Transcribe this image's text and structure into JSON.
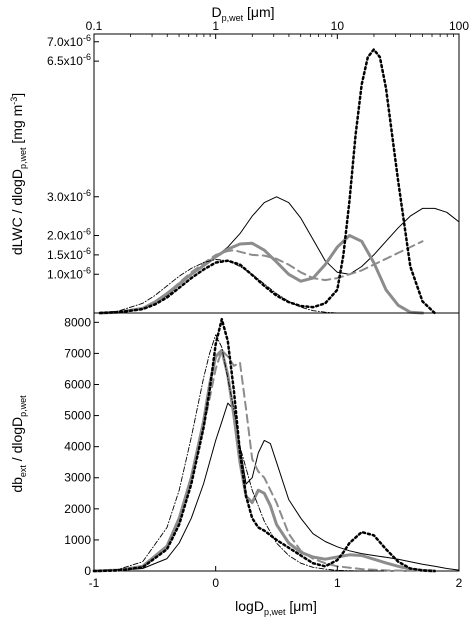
{
  "chart_data": [
    {
      "type": "line",
      "panel": "top",
      "title": "",
      "top_axis": {
        "label_main": "D",
        "label_sub": "p,wet",
        "label_unit": " [μm]",
        "scale": "log",
        "ticks": [
          {
            "value": 0.1,
            "label": "0.1"
          },
          {
            "value": 1,
            "label": "1"
          },
          {
            "value": 10,
            "label": "10"
          },
          {
            "value": 100,
            "label": "100"
          }
        ]
      },
      "ylabel_parts": [
        "dLWC / dlogD",
        "p,wet",
        " [mg m",
        "-3",
        "]"
      ],
      "ylim": [
        0,
        7.2e-06
      ],
      "xlim": [
        -1,
        2
      ],
      "y_ticks": [
        {
          "value": 1e-06,
          "mant": "1.0x10",
          "exp": "-6"
        },
        {
          "value": 1.5e-06,
          "mant": "1.5x10",
          "exp": "-6"
        },
        {
          "value": 2e-06,
          "mant": "2.0x10",
          "exp": "-6"
        },
        {
          "value": 3e-06,
          "mant": "3.0x10",
          "exp": "-6"
        },
        {
          "value": 6.5e-06,
          "mant": "6.5x10",
          "exp": "-6"
        },
        {
          "value": 7e-06,
          "mant": "7.0x10",
          "exp": "-6"
        }
      ],
      "series": [
        {
          "style": "thin-solid",
          "x": [
            -0.95,
            -0.8,
            -0.6,
            -0.5,
            -0.4,
            -0.3,
            -0.2,
            -0.1,
            0,
            0.1,
            0.2,
            0.3,
            0.4,
            0.5,
            0.6,
            0.7,
            0.8,
            0.9,
            1.0,
            1.1,
            1.2,
            1.3,
            1.4,
            1.5,
            1.6,
            1.7,
            1.8,
            1.9,
            2.0
          ],
          "y": [
            0.0,
            2e-08,
            1.2e-07,
            2.5e-07,
            4.5e-07,
            7.2e-07,
            9.8e-07,
            1.2e-06,
            1.45e-06,
            1.7e-06,
            2.05e-06,
            2.5e-06,
            2.85e-06,
            3e-06,
            2.85e-06,
            2.45e-06,
            1.9e-06,
            1.35e-06,
            1.05e-06,
            1e-06,
            1.2e-06,
            1.5e-06,
            1.85e-06,
            2.2e-06,
            2.5e-06,
            2.7e-06,
            2.7e-06,
            2.6e-06,
            2.35e-06
          ]
        },
        {
          "style": "thick-gray",
          "x": [
            -0.95,
            -0.8,
            -0.6,
            -0.5,
            -0.4,
            -0.3,
            -0.2,
            -0.1,
            0,
            0.1,
            0.2,
            0.3,
            0.4,
            0.5,
            0.6,
            0.7,
            0.8,
            0.9,
            1.0,
            1.1,
            1.2,
            1.3,
            1.4,
            1.5,
            1.6,
            1.7
          ],
          "y": [
            0.0,
            2e-08,
            1.2e-07,
            2.8e-07,
            5e-07,
            7.5e-07,
            1e-06,
            1.22e-06,
            1.45e-06,
            1.65e-06,
            1.78e-06,
            1.8e-06,
            1.62e-06,
            1.32e-06,
            1e-06,
            8.2e-07,
            9e-07,
            1.25e-06,
            1.7e-06,
            2e-06,
            1.85e-06,
            1.3e-06,
            6e-07,
            2e-07,
            2e-08,
            0.0
          ]
        },
        {
          "style": "dashed-gray",
          "x": [
            -0.95,
            -0.8,
            -0.6,
            -0.5,
            -0.4,
            -0.3,
            -0.2,
            -0.1,
            0,
            0.1,
            0.15,
            0.2,
            0.3,
            0.4,
            0.5,
            0.6,
            0.7,
            0.8,
            0.9,
            1.0,
            1.1,
            1.2,
            1.3,
            1.4,
            1.5,
            1.6,
            1.7
          ],
          "y": [
            0.0,
            2e-08,
            1.2e-07,
            2.8e-07,
            5e-07,
            7.8e-07,
            1.05e-06,
            1.28e-06,
            1.5e-06,
            1.6e-06,
            1.62e-06,
            1.58e-06,
            1.5e-06,
            1.48e-06,
            1.4e-06,
            1.25e-06,
            1.05e-06,
            9e-07,
            8.5e-07,
            9e-07,
            1e-06,
            1.1e-06,
            1.25e-06,
            1.4e-06,
            1.55e-06,
            1.7e-06,
            1.85e-06
          ]
        },
        {
          "style": "dotted",
          "x": [
            -0.95,
            -0.8,
            -0.6,
            -0.5,
            -0.4,
            -0.3,
            -0.2,
            -0.1,
            0,
            0.1,
            0.2,
            0.3,
            0.4,
            0.5,
            0.6,
            0.7,
            0.8,
            0.9,
            1.0,
            1.05,
            1.1,
            1.15,
            1.2,
            1.25,
            1.3,
            1.35,
            1.4,
            1.5,
            1.6,
            1.7,
            1.8
          ],
          "y": [
            0.0,
            2e-08,
            1e-07,
            2.2e-07,
            4e-07,
            6.5e-07,
            9e-07,
            1.12e-06,
            1.3e-06,
            1.35e-06,
            1.25e-06,
            9.8e-07,
            7e-07,
            4.5e-07,
            2.8e-07,
            1.8e-07,
            1.5e-07,
            2.5e-07,
            6e-07,
            1.5e-06,
            2.9e-06,
            4.6e-06,
            5.9e-06,
            6.6e-06,
            6.8e-06,
            6.6e-06,
            5.8e-06,
            3.4e-06,
            1.2e-06,
            3e-07,
            0.0
          ]
        },
        {
          "style": "dash-dot",
          "x": [
            -0.95,
            -0.8,
            -0.6,
            -0.5,
            -0.4,
            -0.3,
            -0.2,
            -0.1,
            0,
            0.1,
            0.2,
            0.3,
            0.4,
            0.5,
            0.6,
            0.7,
            0.8,
            0.9,
            1.0,
            1.1
          ],
          "y": [
            0.0,
            5e-08,
            2.5e-07,
            4.5e-07,
            7e-07,
            9.5e-07,
            1.15e-06,
            1.3e-06,
            1.38e-06,
            1.35e-06,
            1.2e-06,
            1e-06,
            7.5e-07,
            5e-07,
            3e-07,
            1.5e-07,
            6e-08,
            2e-08,
            0.0,
            0.0
          ]
        }
      ]
    },
    {
      "type": "line",
      "panel": "bottom",
      "title": "",
      "xlabel_main": "logD",
      "xlabel_sub": "p,wet",
      "xlabel_unit": " [μm]",
      "ylabel_line1_main": "db",
      "ylabel_line1_sub": "ext",
      "ylabel_line2_main": " / dlogD",
      "ylabel_line2_sub": "p,wet",
      "xlim": [
        -1,
        2
      ],
      "ylim": [
        0,
        8300
      ],
      "x_ticks": [
        {
          "value": -1,
          "label": "-1"
        },
        {
          "value": 0,
          "label": "0"
        },
        {
          "value": 1,
          "label": "1"
        },
        {
          "value": 2,
          "label": "2"
        }
      ],
      "y_ticks": [
        {
          "value": 0,
          "label": "0"
        },
        {
          "value": 1000,
          "label": "1000"
        },
        {
          "value": 2000,
          "label": "2000"
        },
        {
          "value": 3000,
          "label": "3000"
        },
        {
          "value": 4000,
          "label": "4000"
        },
        {
          "value": 5000,
          "label": "5000"
        },
        {
          "value": 6000,
          "label": "6000"
        },
        {
          "value": 7000,
          "label": "7000"
        },
        {
          "value": 8000,
          "label": "8000"
        }
      ],
      "series": [
        {
          "style": "thin-solid",
          "x": [
            -1.0,
            -0.8,
            -0.6,
            -0.4,
            -0.3,
            -0.2,
            -0.1,
            0,
            0.05,
            0.1,
            0.15,
            0.2,
            0.25,
            0.3,
            0.35,
            0.4,
            0.45,
            0.5,
            0.6,
            0.7,
            0.8,
            0.9,
            1.0,
            1.1,
            1.2,
            1.3,
            1.4,
            1.5,
            1.6,
            1.7,
            1.8,
            1.9,
            2.0
          ],
          "y": [
            0,
            20,
            80,
            400,
            900,
            1700,
            2800,
            4200,
            4800,
            5400,
            5200,
            4000,
            2800,
            3000,
            3800,
            4200,
            4100,
            3500,
            2300,
            1700,
            1200,
            950,
            780,
            650,
            560,
            500,
            440,
            380,
            300,
            220,
            150,
            80,
            30
          ]
        },
        {
          "style": "thick-gray",
          "x": [
            -1.0,
            -0.8,
            -0.6,
            -0.4,
            -0.3,
            -0.2,
            -0.1,
            -0.05,
            0,
            0.05,
            0.1,
            0.15,
            0.2,
            0.25,
            0.3,
            0.35,
            0.4,
            0.45,
            0.5,
            0.6,
            0.7,
            0.8,
            0.9,
            1.0,
            1.1,
            1.2,
            1.3,
            1.4,
            1.5,
            1.6,
            1.7,
            1.8
          ],
          "y": [
            0,
            30,
            150,
            800,
            1700,
            3000,
            4800,
            6000,
            6900,
            7100,
            6300,
            5000,
            3500,
            2400,
            2200,
            2600,
            2500,
            2100,
            1500,
            900,
            600,
            450,
            380,
            450,
            520,
            500,
            380,
            260,
            150,
            60,
            20,
            0
          ]
        },
        {
          "style": "dashed-gray",
          "x": [
            -1.0,
            -0.8,
            -0.6,
            -0.4,
            -0.3,
            -0.2,
            -0.1,
            0,
            0.05,
            0.1,
            0.15,
            0.2,
            0.25,
            0.3,
            0.35,
            0.4,
            0.5,
            0.6,
            0.7,
            0.8,
            0.9,
            1.0,
            1.2,
            1.4,
            1.6,
            1.8
          ],
          "y": [
            0,
            30,
            150,
            750,
            1600,
            2900,
            4600,
            6500,
            7100,
            6900,
            6600,
            6700,
            5200,
            3600,
            3200,
            3000,
            2200,
            1200,
            650,
            400,
            250,
            150,
            60,
            20,
            5,
            0
          ]
        },
        {
          "style": "dotted",
          "x": [
            -1.0,
            -0.8,
            -0.6,
            -0.4,
            -0.3,
            -0.2,
            -0.1,
            -0.05,
            0,
            0.05,
            0.1,
            0.15,
            0.2,
            0.25,
            0.3,
            0.35,
            0.4,
            0.5,
            0.6,
            0.7,
            0.8,
            0.9,
            1.0,
            1.05,
            1.1,
            1.2,
            1.3,
            1.4,
            1.5,
            1.6,
            1.7,
            1.8
          ],
          "y": [
            0,
            20,
            120,
            700,
            1500,
            2800,
            4600,
            5800,
            7300,
            8100,
            7400,
            5800,
            3800,
            2400,
            1700,
            1400,
            1300,
            1000,
            750,
            500,
            250,
            150,
            350,
            600,
            900,
            1250,
            1150,
            700,
            300,
            80,
            20,
            0
          ]
        },
        {
          "style": "dash-dot",
          "x": [
            -1.0,
            -0.8,
            -0.6,
            -0.4,
            -0.3,
            -0.2,
            -0.1,
            -0.05,
            0,
            0.05,
            0.1,
            0.15,
            0.2,
            0.3,
            0.4,
            0.5,
            0.6,
            0.7,
            0.8,
            0.9,
            1.0,
            1.2,
            1.4
          ],
          "y": [
            0,
            50,
            300,
            1400,
            2600,
            4300,
            6200,
            7000,
            7600,
            7200,
            6200,
            5200,
            4000,
            2600,
            1600,
            900,
            500,
            250,
            120,
            60,
            20,
            0,
            0
          ]
        }
      ]
    }
  ]
}
